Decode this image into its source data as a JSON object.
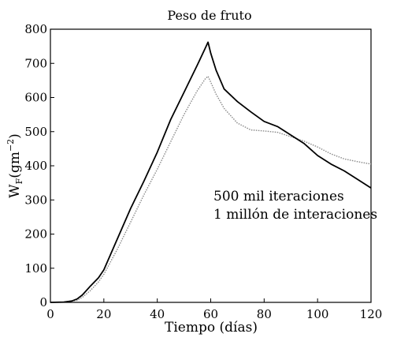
{
  "chart_data": {
    "type": "line",
    "title": "Peso de fruto",
    "xlabel": "Tiempo (días)",
    "ylabel": {
      "main": "W",
      "sub": "F",
      "unit_open": "(gm",
      "unit_sup": "−2",
      "unit_close": ")"
    },
    "xlim": [
      0,
      120
    ],
    "ylim": [
      0,
      800
    ],
    "xticks": [
      "0",
      "20",
      "40",
      "60",
      "80",
      "100",
      "120"
    ],
    "yticks": [
      "0",
      "100",
      "200",
      "300",
      "400",
      "500",
      "600",
      "700",
      "800"
    ],
    "grid": false,
    "legend_position": "center-right",
    "annotations": [
      "500 mil iteraciones",
      "1 millón de interaciones"
    ],
    "series": [
      {
        "style": "solid-black",
        "color": "#000000",
        "x": [
          0,
          5,
          8,
          10,
          12,
          15,
          18,
          20,
          25,
          30,
          35,
          40,
          45,
          50,
          55,
          58,
          59,
          60,
          62,
          65,
          70,
          75,
          80,
          85,
          90,
          95,
          100,
          105,
          110,
          115,
          120
        ],
        "y": [
          0,
          1,
          4,
          10,
          22,
          48,
          72,
          95,
          185,
          275,
          355,
          440,
          535,
          615,
          695,
          745,
          762,
          730,
          680,
          625,
          588,
          558,
          530,
          515,
          490,
          465,
          430,
          405,
          385,
          360,
          335
        ]
      },
      {
        "style": "dotted-gray",
        "color": "#888888",
        "x": [
          0,
          5,
          10,
          12,
          15,
          18,
          20,
          25,
          30,
          35,
          40,
          45,
          50,
          55,
          58,
          59,
          60,
          62,
          65,
          70,
          75,
          80,
          85,
          90,
          95,
          100,
          105,
          110,
          115,
          120
        ],
        "y": [
          0,
          1,
          6,
          15,
          35,
          60,
          82,
          155,
          235,
          315,
          390,
          470,
          550,
          620,
          655,
          662,
          645,
          610,
          568,
          525,
          505,
          502,
          498,
          485,
          472,
          455,
          435,
          420,
          412,
          405
        ]
      }
    ]
  }
}
